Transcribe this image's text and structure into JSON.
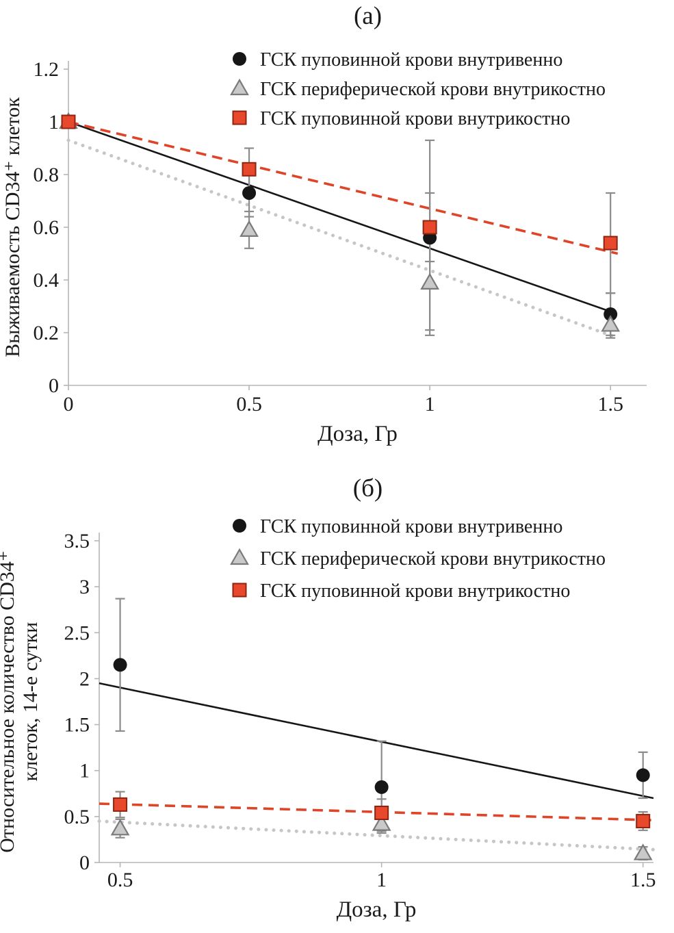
{
  "figure": {
    "background": "#ffffff",
    "text_color": "#1a1a1a"
  },
  "colors": {
    "black_series": "#161616",
    "gray_series_fill": "#c9c9c9",
    "gray_series_stroke": "#7a7a7a",
    "red_series_fill": "#e8492c",
    "red_series_stroke": "#8f2410",
    "trend_dotted": "#c6c6c6",
    "trend_dashed": "#e04428",
    "error_bar": "#8b8b8b",
    "axis": "#b5b5b5"
  },
  "chart_data": [
    {
      "type": "scatter",
      "title": "(а)",
      "xlabel": "Доза, Гр",
      "ylabel_lines": [
        "Выживаемость CD34⁺ клеток"
      ],
      "xlim": [
        0,
        1.6
      ],
      "ylim": [
        0,
        1.2
      ],
      "xticks": [
        0,
        0.5,
        1,
        1.5
      ],
      "xtick_labels": [
        "0",
        "0.5",
        "1",
        "1.5"
      ],
      "yticks": [
        0,
        0.2,
        0.4,
        0.6,
        0.8,
        1,
        1.2
      ],
      "ytick_labels": [
        "0",
        "0.2",
        "0.4",
        "0.6",
        "0.8",
        "1",
        "1.2"
      ],
      "grid": false,
      "legend_position": "top-inside",
      "series": [
        {
          "name": "ГСК пуповинной крови внутривенно",
          "marker": "circle",
          "x": [
            0,
            0.5,
            1,
            1.5
          ],
          "y": [
            1.0,
            0.73,
            0.56,
            0.27
          ],
          "yerr": [
            0,
            0.09,
            0.37,
            0.08
          ],
          "trend": {
            "style": "solid",
            "x": [
              0,
              1.5
            ],
            "y": [
              1.0,
              0.28
            ]
          }
        },
        {
          "name": "ГСК периферической крови внутрикостно",
          "marker": "triangle",
          "x": [
            0,
            0.5,
            1,
            1.5
          ],
          "y": [
            1.0,
            0.59,
            0.39,
            0.23
          ],
          "yerr": [
            0,
            0.07,
            0.18,
            0.05
          ],
          "trend": {
            "style": "dotted",
            "x": [
              0,
              1.52
            ],
            "y": [
              0.93,
              0.18
            ]
          }
        },
        {
          "name": "ГСК пуповинной крови внутрикостно",
          "marker": "square",
          "x": [
            0,
            0.5,
            1,
            1.5
          ],
          "y": [
            1.0,
            0.82,
            0.6,
            0.54
          ],
          "yerr": [
            0,
            0.08,
            0.13,
            0.19
          ],
          "trend": {
            "style": "dashed",
            "x": [
              0,
              1.52
            ],
            "y": [
              1.0,
              0.5
            ]
          }
        }
      ]
    },
    {
      "type": "scatter",
      "title": "(б)",
      "xlabel": "Доза, Гр",
      "ylabel_lines": [
        "Относительное количество CD34⁺",
        "клеток, 14-е сутки"
      ],
      "xlim": [
        0.46,
        1.52
      ],
      "ylim": [
        0,
        3.5
      ],
      "xticks": [
        0.5,
        1,
        1.5
      ],
      "xtick_labels": [
        "0.5",
        "1",
        "1.5"
      ],
      "yticks": [
        0,
        0.5,
        1,
        1.5,
        2,
        2.5,
        3,
        3.5
      ],
      "ytick_labels": [
        "0",
        "0.5",
        "1",
        "1.5",
        "2",
        "2.5",
        "3",
        "3.5"
      ],
      "grid": false,
      "legend_position": "top-inside",
      "series": [
        {
          "name": "ГСК пуповинной крови внутривенно",
          "marker": "circle",
          "x": [
            0.5,
            1,
            1.5
          ],
          "y": [
            2.15,
            0.82,
            0.95
          ],
          "yerr": [
            0.72,
            0.5,
            0.25
          ],
          "trend": {
            "style": "solid",
            "x": [
              0.46,
              1.52
            ],
            "y": [
              1.95,
              0.7
            ]
          }
        },
        {
          "name": "ГСК периферической крови внутрикостно",
          "marker": "triangle",
          "x": [
            0.5,
            1,
            1.5
          ],
          "y": [
            0.37,
            0.42,
            0.1
          ],
          "yerr": [
            0.1,
            0.08,
            0.07
          ],
          "trend": {
            "style": "dotted",
            "x": [
              0.46,
              1.52
            ],
            "y": [
              0.45,
              0.14
            ]
          }
        },
        {
          "name": "ГСК пуповинной крови внутрикостно",
          "marker": "square",
          "x": [
            0.5,
            1,
            1.5
          ],
          "y": [
            0.63,
            0.54,
            0.45
          ],
          "yerr": [
            0.14,
            0.15,
            0.1
          ],
          "trend": {
            "style": "dashed",
            "x": [
              0.46,
              1.52
            ],
            "y": [
              0.64,
              0.46
            ]
          }
        }
      ]
    }
  ]
}
